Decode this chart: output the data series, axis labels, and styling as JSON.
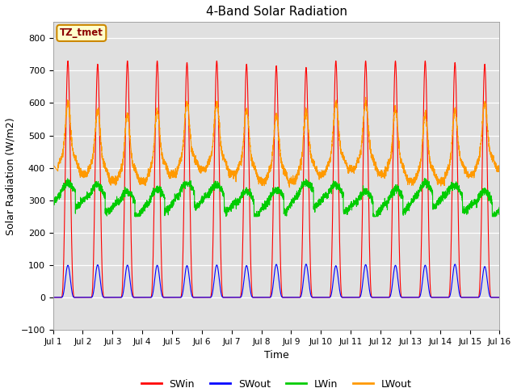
{
  "title": "4-Band Solar Radiation",
  "xlabel": "Time",
  "ylabel": "Solar Radiation (W/m2)",
  "annotation": "TZ_tmet",
  "ylim": [
    -100,
    850
  ],
  "yticks": [
    -100,
    0,
    100,
    200,
    300,
    400,
    500,
    600,
    700,
    800
  ],
  "num_days": 15,
  "points_per_day": 288,
  "colors": {
    "SWin": "#ff0000",
    "SWout": "#0000ff",
    "LWin": "#00cc00",
    "LWout": "#ff9900"
  },
  "background_color": "#ffffff",
  "plot_bg_color": "#e0e0e0",
  "grid_color": "#ffffff",
  "sw_in_peak": 730,
  "sw_out_peak": 103,
  "lw_in_base": 300,
  "lw_out_base": 410
}
